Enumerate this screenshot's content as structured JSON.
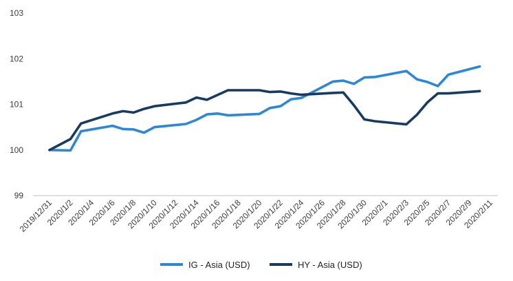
{
  "chart_data": {
    "type": "line",
    "ylim": [
      99,
      103
    ],
    "yticks": [
      "99",
      "100",
      "101",
      "102",
      "103"
    ],
    "xlim": [
      "2019-12-31",
      "2020-02-11"
    ],
    "xticks": [
      "2019/12/31",
      "2020/1/2",
      "2020/1/4",
      "2020/1/6",
      "2020/1/8",
      "2020/1/10",
      "2020/1/12",
      "2020/1/14",
      "2020/1/16",
      "2020/1/18",
      "2020/1/20",
      "2020/1/22",
      "2020/1/24",
      "2020/1/26",
      "2020/1/28",
      "2020/1/30",
      "2020/2/1",
      "2020/2/3",
      "2020/2/5",
      "2020/2/7",
      "2020/2/9",
      "2020/2/11"
    ],
    "grid": false,
    "legend_position": "bottom-center",
    "series": [
      {
        "name": "IG - Asia (USD)",
        "color": "#2e86d6",
        "points": [
          [
            "2019-12-31",
            100.0
          ],
          [
            "2020-01-02",
            99.99
          ],
          [
            "2020-01-03",
            100.41
          ],
          [
            "2020-01-06",
            100.53
          ],
          [
            "2020-01-07",
            100.46
          ],
          [
            "2020-01-08",
            100.45
          ],
          [
            "2020-01-09",
            100.38
          ],
          [
            "2020-01-10",
            100.5
          ],
          [
            "2020-01-13",
            100.57
          ],
          [
            "2020-01-14",
            100.66
          ],
          [
            "2020-01-15",
            100.78
          ],
          [
            "2020-01-16",
            100.8
          ],
          [
            "2020-01-17",
            100.76
          ],
          [
            "2020-01-20",
            100.79
          ],
          [
            "2020-01-21",
            100.92
          ],
          [
            "2020-01-22",
            100.96
          ],
          [
            "2020-01-23",
            101.11
          ],
          [
            "2020-01-24",
            101.14
          ],
          [
            "2020-01-27",
            101.5
          ],
          [
            "2020-01-28",
            101.52
          ],
          [
            "2020-01-29",
            101.45
          ],
          [
            "2020-01-30",
            101.59
          ],
          [
            "2020-01-31",
            101.6
          ],
          [
            "2020-02-03",
            101.73
          ],
          [
            "2020-02-04",
            101.55
          ],
          [
            "2020-02-05",
            101.49
          ],
          [
            "2020-02-06",
            101.4
          ],
          [
            "2020-02-07",
            101.65
          ],
          [
            "2020-02-10",
            101.83
          ]
        ]
      },
      {
        "name": "HY - Asia (USD)",
        "color": "#173a63",
        "points": [
          [
            "2019-12-31",
            100.0
          ],
          [
            "2020-01-02",
            100.24
          ],
          [
            "2020-01-03",
            100.58
          ],
          [
            "2020-01-06",
            100.8
          ],
          [
            "2020-01-07",
            100.85
          ],
          [
            "2020-01-08",
            100.82
          ],
          [
            "2020-01-09",
            100.9
          ],
          [
            "2020-01-10",
            100.96
          ],
          [
            "2020-01-13",
            101.04
          ],
          [
            "2020-01-14",
            101.15
          ],
          [
            "2020-01-15",
            101.1
          ],
          [
            "2020-01-17",
            101.31
          ],
          [
            "2020-01-20",
            101.31
          ],
          [
            "2020-01-21",
            101.27
          ],
          [
            "2020-01-22",
            101.28
          ],
          [
            "2020-01-23",
            101.24
          ],
          [
            "2020-01-24",
            101.21
          ],
          [
            "2020-01-27",
            101.25
          ],
          [
            "2020-01-28",
            101.26
          ],
          [
            "2020-01-29",
            100.98
          ],
          [
            "2020-01-30",
            100.67
          ],
          [
            "2020-01-31",
            100.63
          ],
          [
            "2020-02-03",
            100.56
          ],
          [
            "2020-02-04",
            100.77
          ],
          [
            "2020-02-05",
            101.04
          ],
          [
            "2020-02-06",
            101.24
          ],
          [
            "2020-02-07",
            101.24
          ],
          [
            "2020-02-10",
            101.29
          ]
        ]
      }
    ]
  }
}
